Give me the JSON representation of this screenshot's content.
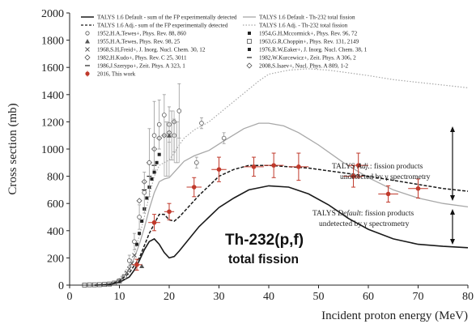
{
  "chart_data": {
    "type": "scatter",
    "xlabel": "Incident proton energy (MeV)",
    "ylabel": "Cross section (mb)",
    "xlim": [
      0,
      80
    ],
    "ylim": [
      0,
      2000
    ],
    "x_ticks": [
      "0",
      "10",
      "20",
      "30",
      "40",
      "50",
      "60",
      "70",
      "80"
    ],
    "y_ticks": [
      "0",
      "200",
      "400",
      "600",
      "800",
      "1000",
      "1200",
      "1400",
      "1600",
      "1800",
      "2000"
    ],
    "legend_left": [
      "TALYS 1.6 Default - sum of the FP experimentally detected",
      "TALYS 1.6 Adj.- sum of the FP experimentally detected",
      "1952,H.A,Tewes+, Phys. Rev. 88, 860",
      "1955,H.A,Tewes, Phys. Rev. 98, 25",
      "1968,S.H,Freid+, J. Inorg. Nucl. Chem. 30, 12",
      "1982,H.Kudo+, Phys. Rev. C 25, 3011",
      "1986,J.Szerypo+, Zeit. Phys. A 323, 1",
      "2016, This work"
    ],
    "legend_right": [
      "TALYS 1.6 Default - Th-232 total fission",
      "TALYS 1.6 Adj. - Th-232 total fission",
      "1954,G.H,Mccormick+, Phys. Rev. 96, 72",
      "1963,G.R,Choppin+, Phys. Rev. 131, 2149",
      "1976,R.W,Eaker+, J. Inorg. Nucl. Chem. 38, 1",
      "1982,W.Kurcewicz+, Zeit. Phys. A 306, 2",
      "2008,S.Isaev+, Nucl. Phys. A 809, 1-2"
    ],
    "annotation_adj": {
      "line1_prefix": "TALYS ",
      "line1_em": "Adj.",
      "line1_suffix": ": fission products",
      "line2": "undetected by γ spectrometry"
    },
    "annotation_default": {
      "line1_prefix": "TALYS ",
      "line1_em": "Default",
      "line1_suffix": ": fission products",
      "line2": "undetected by γ spectrometry"
    },
    "title_line1": "Th-232(p,f)",
    "title_line2": "total fission",
    "series": [
      {
        "name": "TALYS 1.6 Default - Th-232 total fission",
        "style": "solid-light",
        "x": [
          5,
          7,
          9,
          10,
          11,
          12,
          13,
          14,
          15,
          16,
          17,
          18,
          19,
          20,
          21,
          22,
          23,
          25,
          28,
          31,
          35,
          38,
          40,
          43,
          46,
          50,
          55,
          60,
          65,
          70,
          75,
          80
        ],
        "y": [
          0,
          3,
          20,
          40,
          70,
          120,
          200,
          300,
          420,
          560,
          680,
          760,
          780,
          790,
          830,
          870,
          910,
          950,
          990,
          1060,
          1150,
          1190,
          1190,
          1170,
          1120,
          1030,
          900,
          790,
          700,
          640,
          600,
          575
        ]
      },
      {
        "name": "TALYS 1.6 Adj. - Th-232 total fission",
        "style": "dotted-light",
        "x": [
          5,
          7,
          9,
          10,
          11,
          12,
          13,
          14,
          15,
          16,
          17,
          18,
          19,
          20,
          21,
          22,
          23,
          25,
          28,
          31,
          35,
          38,
          40,
          44,
          48,
          52,
          56,
          60,
          65,
          70,
          75,
          80
        ],
        "y": [
          0,
          3,
          25,
          50,
          90,
          150,
          240,
          360,
          500,
          660,
          800,
          880,
          900,
          920,
          970,
          1030,
          1080,
          1140,
          1200,
          1290,
          1410,
          1500,
          1550,
          1580,
          1590,
          1580,
          1560,
          1540,
          1510,
          1490,
          1470,
          1450
        ]
      },
      {
        "name": "TALYS 1.6 Adj.- sum of the FP experimentally detected",
        "style": "dashed",
        "x": [
          5,
          8,
          10,
          12,
          14,
          16,
          18,
          19,
          20,
          21,
          22,
          24,
          26,
          28,
          30,
          33,
          36,
          40,
          44,
          48,
          52,
          56,
          60,
          65,
          70,
          75,
          80
        ],
        "y": [
          0,
          5,
          30,
          90,
          200,
          380,
          520,
          520,
          480,
          470,
          500,
          580,
          660,
          730,
          800,
          850,
          880,
          880,
          870,
          860,
          840,
          820,
          800,
          770,
          740,
          710,
          690
        ]
      },
      {
        "name": "TALYS 1.6 Default - sum of the FP experimentally detected",
        "style": "solid",
        "x": [
          5,
          8,
          10,
          12,
          13,
          14,
          15,
          16,
          17,
          18,
          19,
          20,
          21,
          22,
          24,
          26,
          28,
          30,
          33,
          36,
          40,
          44,
          48,
          52,
          56,
          60,
          65,
          70,
          75,
          80
        ],
        "y": [
          0,
          5,
          20,
          60,
          110,
          180,
          260,
          320,
          340,
          300,
          240,
          200,
          210,
          250,
          340,
          430,
          500,
          570,
          640,
          700,
          730,
          720,
          670,
          590,
          490,
          410,
          340,
          300,
          285,
          275
        ]
      }
    ],
    "this_work": {
      "name": "2016, This work",
      "points": [
        {
          "x": 13.5,
          "y": 150,
          "xerr": 1.0,
          "yerr": 40
        },
        {
          "x": 17.0,
          "y": 460,
          "xerr": 1.2,
          "yerr": 60
        },
        {
          "x": 20.0,
          "y": 540,
          "xerr": 1.0,
          "yerr": 60
        },
        {
          "x": 25.0,
          "y": 720,
          "xerr": 1.5,
          "yerr": 70
        },
        {
          "x": 30.0,
          "y": 850,
          "xerr": 1.5,
          "yerr": 90
        },
        {
          "x": 37.0,
          "y": 870,
          "xerr": 2.0,
          "yerr": 70
        },
        {
          "x": 41.0,
          "y": 880,
          "xerr": 2.0,
          "yerr": 90
        },
        {
          "x": 46.0,
          "y": 870,
          "xerr": 2.0,
          "yerr": 100
        },
        {
          "x": 57.0,
          "y": 800,
          "xerr": 2.0,
          "yerr": 80
        },
        {
          "x": 58.0,
          "y": 880,
          "xerr": 2.0,
          "yerr": 90
        },
        {
          "x": 64.0,
          "y": 670,
          "xerr": 2.0,
          "yerr": 60
        },
        {
          "x": 70.0,
          "y": 710,
          "xerr": 2.0,
          "yerr": 70
        }
      ]
    },
    "literature": {
      "points": [
        {
          "x": 3,
          "y": 0,
          "m": "sq"
        },
        {
          "x": 4,
          "y": 2,
          "m": "sq"
        },
        {
          "x": 5,
          "y": 2,
          "m": "sq"
        },
        {
          "x": 6,
          "y": 3,
          "m": "sq"
        },
        {
          "x": 7,
          "y": 5,
          "m": "sq"
        },
        {
          "x": 8,
          "y": 8,
          "m": "sq"
        },
        {
          "x": 9,
          "y": 15,
          "m": "sq"
        },
        {
          "x": 10,
          "y": 30,
          "m": "sq"
        },
        {
          "x": 11,
          "y": 60,
          "m": "sq"
        },
        {
          "x": 11.5,
          "y": 90,
          "m": "x"
        },
        {
          "x": 12,
          "y": 120,
          "m": "x"
        },
        {
          "x": 12.5,
          "y": 160,
          "m": "x"
        },
        {
          "x": 13,
          "y": 220,
          "m": "x"
        },
        {
          "x": 13.5,
          "y": 300,
          "m": "dot"
        },
        {
          "x": 14,
          "y": 380,
          "m": "dot"
        },
        {
          "x": 14.5,
          "y": 470,
          "m": "dot"
        },
        {
          "x": 15,
          "y": 560,
          "m": "dot"
        },
        {
          "x": 15.5,
          "y": 640,
          "m": "dot"
        },
        {
          "x": 16,
          "y": 720,
          "m": "dot"
        },
        {
          "x": 16.5,
          "y": 780,
          "m": "dot"
        },
        {
          "x": 17,
          "y": 830,
          "m": "dot"
        },
        {
          "x": 17.5,
          "y": 900,
          "m": "dot"
        },
        {
          "x": 18,
          "y": 960,
          "m": "dot"
        },
        {
          "x": 15,
          "y": 700,
          "m": "dash"
        },
        {
          "x": 16,
          "y": 800,
          "m": "dash"
        },
        {
          "x": 17,
          "y": 880,
          "m": "dash"
        },
        {
          "x": 14,
          "y": 620,
          "m": "dia"
        },
        {
          "x": 15,
          "y": 760,
          "m": "dia"
        },
        {
          "x": 16,
          "y": 900,
          "m": "dia"
        },
        {
          "x": 17,
          "y": 1000,
          "m": "dia"
        },
        {
          "x": 18,
          "y": 1080,
          "m": "dia"
        },
        {
          "x": 19,
          "y": 1100,
          "m": "dia"
        },
        {
          "x": 20,
          "y": 1120,
          "m": "dia"
        },
        {
          "x": 21,
          "y": 1200,
          "m": "dia"
        },
        {
          "x": 12,
          "y": 180,
          "m": "circ",
          "yerr": 40
        },
        {
          "x": 13,
          "y": 320,
          "m": "circ",
          "yerr": 60
        },
        {
          "x": 14,
          "y": 500,
          "m": "circ",
          "yerr": 90
        },
        {
          "x": 15,
          "y": 680,
          "m": "circ",
          "yerr": 150
        },
        {
          "x": 16,
          "y": 900,
          "m": "circ",
          "yerr": 250
        },
        {
          "x": 17,
          "y": 1100,
          "m": "circ",
          "yerr": 250
        },
        {
          "x": 18,
          "y": 1180,
          "m": "circ",
          "yerr": 180
        },
        {
          "x": 19,
          "y": 1250,
          "m": "circ",
          "yerr": 150
        },
        {
          "x": 20,
          "y": 1180,
          "m": "circ",
          "yerr": 130
        },
        {
          "x": 21,
          "y": 1100,
          "m": "circ",
          "yerr": 120
        },
        {
          "x": 22,
          "y": 1280,
          "m": "circ",
          "yerr": 200
        },
        {
          "x": 25.5,
          "y": 900,
          "m": "circ",
          "yerr": 40
        },
        {
          "x": 26.5,
          "y": 1190,
          "m": "circ",
          "yerr": 40
        },
        {
          "x": 31,
          "y": 1080,
          "m": "circ",
          "yerr": 40
        },
        {
          "x": 19.5,
          "y": 1000,
          "m": "bar",
          "yerr": 200
        },
        {
          "x": 20.5,
          "y": 1100,
          "m": "bar",
          "yerr": 180
        },
        {
          "x": 21.5,
          "y": 1050,
          "m": "bar",
          "yerr": 150
        },
        {
          "x": 14.5,
          "y": 140,
          "m": "tri"
        },
        {
          "x": 20,
          "y": 1100,
          "m": "tri"
        }
      ]
    },
    "colors": {
      "default_line": "#1a1a1a",
      "adj_dashed": "#1a1a1a",
      "total_light": "#a8a8a8",
      "this_work": "#c0392b",
      "markers": "#555555"
    }
  }
}
